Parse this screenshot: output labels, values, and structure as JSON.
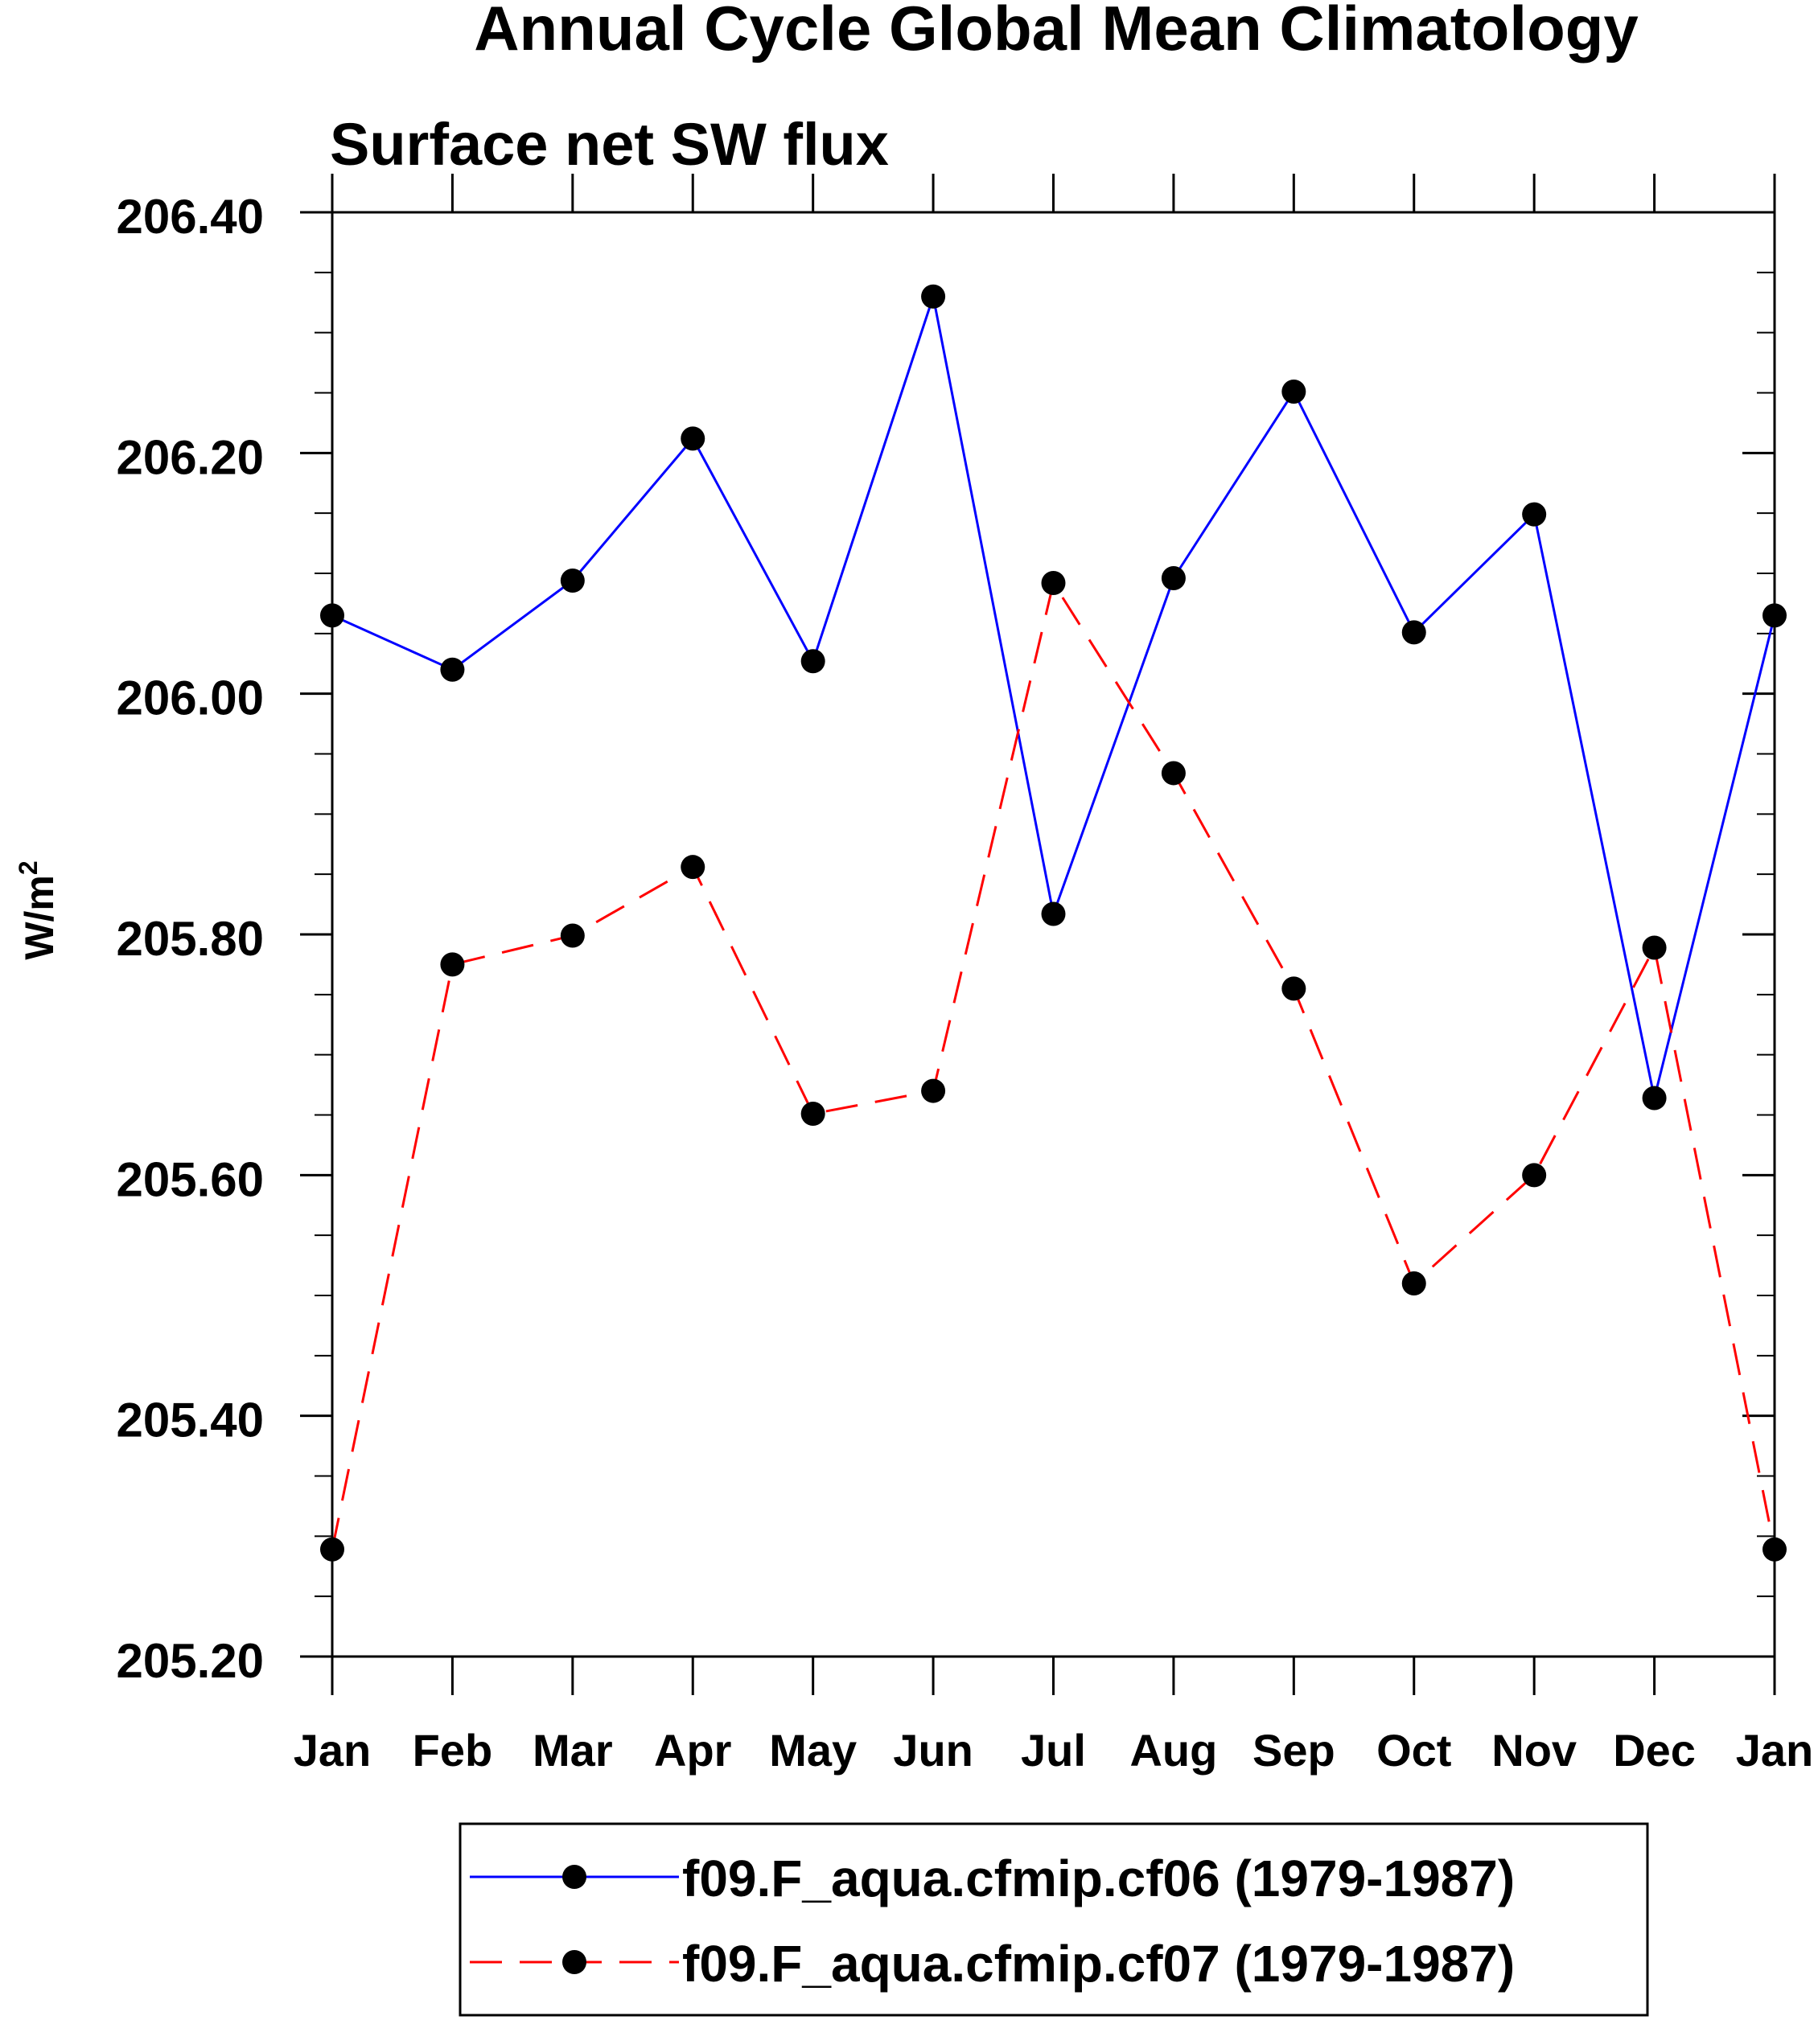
{
  "chart_data": {
    "type": "line",
    "title": "Annual Cycle Global Mean Climatology",
    "subtitle": "Surface net SW flux",
    "ylabel": "W/m",
    "ylabel_sup": "2",
    "xlabel": "",
    "categories": [
      "Jan",
      "Feb",
      "Mar",
      "Apr",
      "May",
      "Jun",
      "Jul",
      "Aug",
      "Sep",
      "Oct",
      "Nov",
      "Dec",
      "Jan"
    ],
    "ylim": [
      205.2,
      206.4
    ],
    "yticks": [
      205.2,
      205.4,
      205.6,
      205.8,
      206.0,
      206.2,
      206.4
    ],
    "ytick_labels": [
      "205.20",
      "205.40",
      "205.60",
      "205.80",
      "206.00",
      "206.20",
      "206.40"
    ],
    "y_minor_step": 0.05,
    "grid": false,
    "legend_position": "bottom",
    "series": [
      {
        "name": "f09.F_aqua.cfmip.cf06 (1979-1987)",
        "color": "#0000ff",
        "dash": "solid",
        "marker": "circle",
        "values": [
          206.065,
          206.02,
          206.094,
          206.212,
          206.027,
          206.33,
          205.817,
          206.096,
          206.251,
          206.051,
          206.149,
          205.664,
          206.065
        ]
      },
      {
        "name": "f09.F_aqua.cfmip.cf07 (1979-1987)",
        "color": "#ff0000",
        "dash": "dashed",
        "marker": "circle",
        "values": [
          205.289,
          205.775,
          205.799,
          205.856,
          205.651,
          205.67,
          206.092,
          205.934,
          205.755,
          205.51,
          205.6,
          205.789,
          205.289
        ]
      }
    ]
  }
}
